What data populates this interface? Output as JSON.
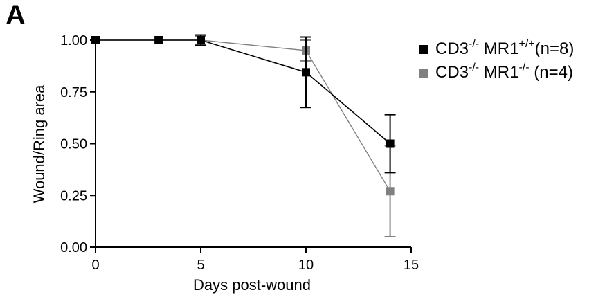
{
  "panel_label": "A",
  "chart_data": {
    "type": "line",
    "xlabel": "Days post-wound",
    "ylabel": "Wound/Ring area",
    "xlim": [
      0,
      15
    ],
    "ylim": [
      0,
      1
    ],
    "xticks": [
      0,
      5,
      10,
      15
    ],
    "yticks": [
      0,
      0.25,
      0.5,
      0.75,
      1.0
    ],
    "xtick_labels": [
      "0",
      "5",
      "10",
      "15"
    ],
    "ytick_labels": [
      "0.00",
      "0.25",
      "0.50",
      "0.75",
      "1.00"
    ],
    "grid": false,
    "legend_position": "top-right",
    "series": [
      {
        "legend_base": "CD3",
        "legend_sup1": "-/-",
        "legend_mid": " MR1",
        "legend_sup2": "+/+",
        "legend_tail": "(n=8)",
        "color": "#000000",
        "x": [
          0,
          3,
          5,
          10,
          14
        ],
        "y": [
          1.0,
          1.0,
          1.0,
          0.845,
          0.5
        ],
        "err": [
          0,
          0,
          0.025,
          0.17,
          0.14
        ]
      },
      {
        "legend_base": "CD3",
        "legend_sup1": "-/-",
        "legend_mid": " MR1",
        "legend_sup2": "-/-",
        "legend_tail": " (n=4)",
        "color": "#808080",
        "x": [
          0,
          3,
          5,
          10,
          14
        ],
        "y": [
          1.0,
          1.0,
          1.0,
          0.95,
          0.27
        ],
        "err": [
          0,
          0,
          0.02,
          0.05,
          0.22
        ]
      }
    ]
  }
}
